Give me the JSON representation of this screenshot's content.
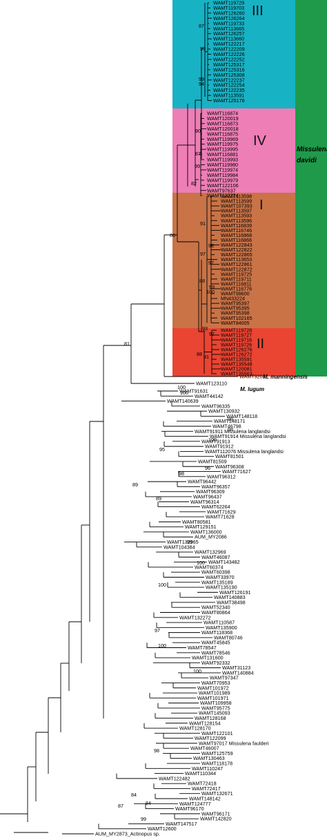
{
  "colors": {
    "clade_III": "#17b2c4",
    "clade_IV": "#ee7eb6",
    "clade_I": "#c97347",
    "clade_II": "#ea4432",
    "davidi_bar": "#1f9a4a"
  },
  "clade_labels": [
    "III",
    "IV",
    "I",
    "II"
  ],
  "species_label": {
    "line1": "Missulena",
    "line2": "davidi"
  },
  "clade_III_leaves": [
    "WAMT119729",
    "WAMT119703",
    "WAMT126260",
    "WAMT126264",
    "WAMT119733",
    "WAMT113665",
    "WAMT126257",
    "WAMT113660",
    "WAMT122217",
    "WAMT122209",
    "WAMT122226",
    "WAMT122252",
    "WAMT125317",
    "WAMT125316",
    "WAMT125308",
    "WAMT122237",
    "WAMT122254",
    "WAMT122235",
    "WAMT113591",
    "WAMT125176"
  ],
  "clade_IV_leaves": [
    "WAMT116874",
    "WAMT120019",
    "WAMT116873",
    "WAMT120018",
    "WAMT116875",
    "WAMT119969",
    "WAMT119975",
    "WAMT119995",
    "WAMT116881",
    "WAMT119993",
    "WAMT119980",
    "WAMT119974",
    "WAMT119984",
    "WAMT119979",
    "WAMT122106",
    "WAMT97637",
    "WAMT122224"
  ],
  "clade_I_leaves": [
    "WAMT113598",
    "WAMT113599",
    "WAMT107393",
    "WAMT113597",
    "WAMT113593",
    "WAMT113596",
    "WAMT116839",
    "WAMT116746",
    "WAMT116868",
    "WAMT116866",
    "WAMT122843",
    "WAMT122822",
    "WAMT122865",
    "WAMT113653",
    "WAMT122861",
    "WAMT122872",
    "WAMT119725",
    "WAMT119711",
    "WAMT116811",
    "WAMT116776",
    "WAMT99600",
    "MN433224",
    "WAMT95397",
    "WAMT95395",
    "WAMT95398",
    "WAMT102165",
    "WAMT84005"
  ],
  "clade_II_leaves": [
    "WAMT119728",
    "WAMT119727",
    "WAMT119716",
    "WAMT119726",
    "WAMT126276",
    "WAMT126272",
    "WAMT135591",
    "WAMT135548",
    "WAMT120081",
    "WAMT135563"
  ],
  "outside_leaves": [
    "WAMT92071",
    "WAMT123110",
    "WAMT91631",
    "WAMT44142",
    "WAMT140639",
    "WAMT96335",
    "WAMT130932",
    "WAMT148118",
    "WAMT148171",
    "WAMT46798",
    "WAMT91911 Missulena langlandsi",
    "WAMT91914 Missulena langlandsi",
    "WAMT91913",
    "WAMT91912",
    "WAMT112076 Missulena langlandsi",
    "WAMT81501",
    "WAMT81509",
    "WAMT96308",
    "WAMT71627",
    "WAMT96312",
    "WAMT96442",
    "WAMT96357",
    "WAMT96309",
    "WAMT96437",
    "WAMT96314",
    "WAMT62264",
    "WAMT71629",
    "WAMT71628",
    "WAMT80581",
    "WAMT129151",
    "WAMT136000",
    "AUM_MY2086",
    "WAMT132965",
    "WAMT104384",
    "WAMT132969",
    "WAMT46087",
    "WAMT143482",
    "WAMT60374",
    "WAMT60398",
    "WAMT33970",
    "WAMT135189",
    "WAMT135190",
    "WAMT126191",
    "WAMT140883",
    "WAMT38498",
    "WAMT52340",
    "WAMT80864",
    "WAMT132272",
    "WAMT110587",
    "WAMT135900",
    "WAMT118368",
    "WAMT80746",
    "WAMT45845",
    "WAMT78547",
    "WAMT78546",
    "WAMT131600",
    "WAMT92332",
    "WAMT31123",
    "WAMT140884",
    "WAMT97347",
    "WAMT70953",
    "WAMT101972",
    "WAMT101989",
    "WAMT101971",
    "WAMT109958",
    "WAMT95775",
    "WAMT145093",
    "WAMT128168",
    "WAMT128154",
    "WAMT128170",
    "WAMT122101",
    "WAMT122099",
    "WAMT97017 Missulena faulderi",
    "WAMT46007",
    "WAMT125759",
    "WAMT130463",
    "WAMT118178",
    "WAMT110247",
    "WAMT110344",
    "WAMT122482",
    "WAMT72418",
    "WAMT72417",
    "WAMT132671",
    "WAMT148142",
    "WAMT124777",
    "WAMT96170",
    "WAMT96171",
    "WAMT142820",
    "WAMT147517",
    "WAMT12600",
    "AUM_MY2873_Actinopus sp."
  ],
  "species_tags": {
    "manningensis": "M. manningensis",
    "lugum": "M. lugum"
  },
  "bootstrap": {
    "b_87": "87",
    "b_93": "93",
    "b_99a": "99",
    "b_94": "94",
    "b_90": "90",
    "b_87b": "87",
    "b_99b": "99",
    "b_82": "82",
    "b_86": "86",
    "b_91": "91",
    "b_97a": "97",
    "b_88a": "88",
    "b_98": "98",
    "b_97b": "97",
    "b_99c": "99",
    "b_100a": "100",
    "b_93b": "93",
    "b_97c": "97",
    "b_91b": "91",
    "b_88b": "88",
    "b_81": "81",
    "b_100b": "100",
    "b_100c": "100",
    "b_98b": "98",
    "b_98c": "98",
    "b_100d": "100",
    "b_95": "95",
    "b_89a": "89",
    "b_96": "96",
    "b_98d": "98",
    "b_89b": "89",
    "b_99d": "99",
    "b_100e": "100",
    "b_100f": "100",
    "b_97d": "97",
    "b_100g": "100",
    "b_100h": "100",
    "b_98e": "98",
    "b_84a": "84",
    "b_84b": "84",
    "b_87c": "87",
    "b_99e": "99"
  }
}
